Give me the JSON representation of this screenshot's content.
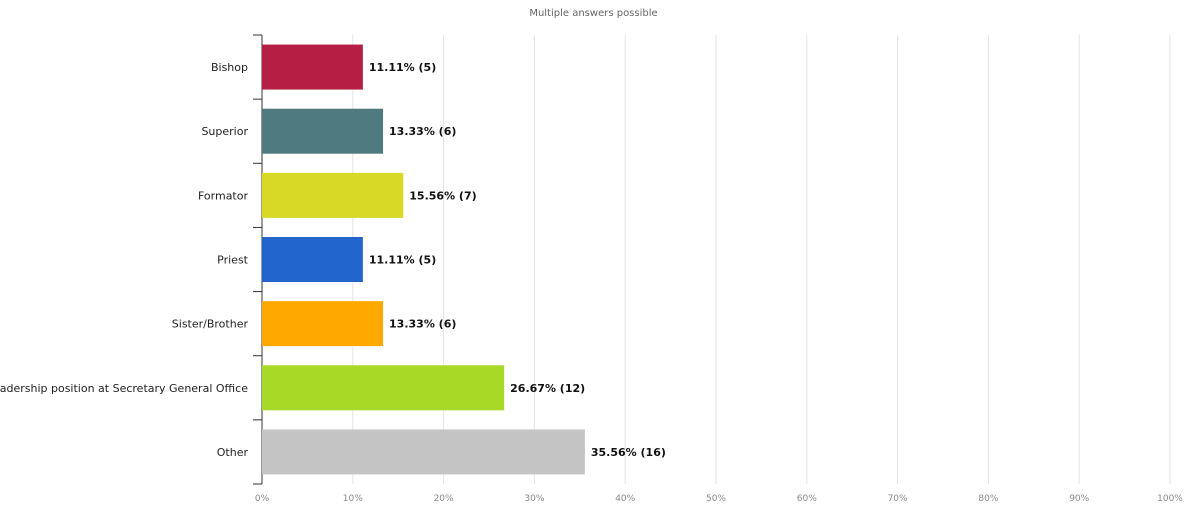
{
  "chart_data": {
    "type": "bar",
    "orientation": "horizontal",
    "subtitle": "Multiple answers possible",
    "categories": [
      "Bishop",
      "Superior",
      "Formator",
      "Priest",
      "Sister/Brother",
      "Leadership position at Secretary General Office",
      "Other"
    ],
    "values": [
      11.11,
      13.33,
      15.56,
      11.11,
      13.33,
      26.67,
      35.56
    ],
    "counts": [
      5,
      6,
      7,
      5,
      6,
      12,
      16
    ],
    "data_labels": [
      "11.11% (5)",
      "13.33% (6)",
      "15.56% (7)",
      "11.11% (5)",
      "13.33% (6)",
      "26.67% (12)",
      "35.56% (16)"
    ],
    "colors": [
      "#b61f44",
      "#4f7b80",
      "#d8d926",
      "#2266cc",
      "#ffa800",
      "#a8d926",
      "#c4c4c4"
    ],
    "xlim": [
      0,
      100
    ],
    "x_ticks": [
      "0%",
      "10%",
      "20%",
      "30%",
      "40%",
      "50%",
      "60%",
      "70%",
      "80%",
      "90%",
      "100%"
    ],
    "grid": true,
    "legend": "none"
  }
}
